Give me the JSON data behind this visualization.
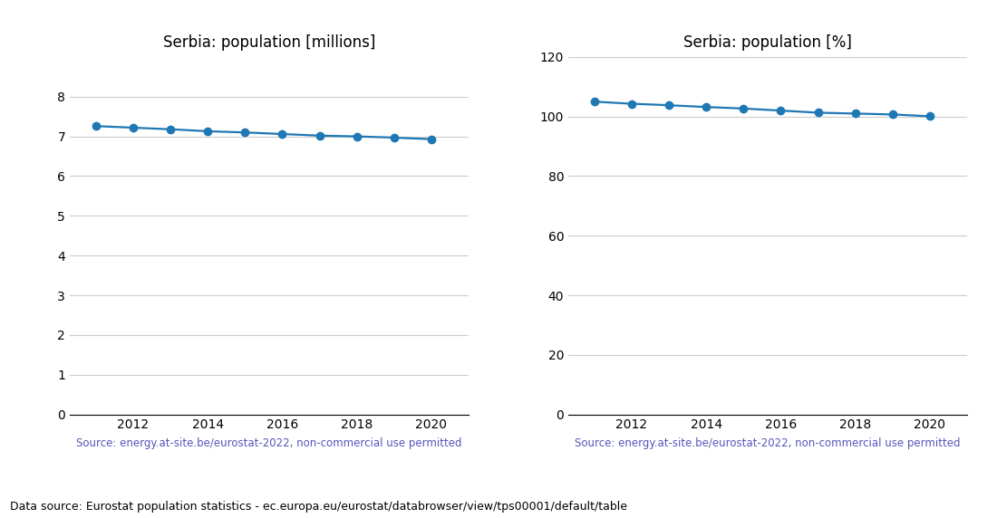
{
  "years": [
    2011,
    2012,
    2013,
    2014,
    2015,
    2016,
    2017,
    2018,
    2019,
    2020
  ],
  "population_millions": [
    7.26,
    7.22,
    7.18,
    7.13,
    7.1,
    7.06,
    7.02,
    7.0,
    6.97,
    6.93
  ],
  "population_percent": [
    105.0,
    104.3,
    103.8,
    103.2,
    102.7,
    102.0,
    101.3,
    101.0,
    100.7,
    100.1
  ],
  "title_millions": "Serbia: population [millions]",
  "title_percent": "Serbia: population [%]",
  "source_text": "Source: energy.at-site.be/eurostat-2022, non-commercial use permitted",
  "footer_text": "Data source: Eurostat population statistics - ec.europa.eu/eurostat/databrowser/view/tps00001/default/table",
  "line_color": "#1f77b4",
  "marker": "o",
  "markersize": 6,
  "linewidth": 1.6,
  "ylim_millions": [
    0,
    9
  ],
  "ylim_percent": [
    0,
    120
  ],
  "yticks_millions": [
    0,
    1,
    2,
    3,
    4,
    5,
    6,
    7,
    8
  ],
  "yticks_percent": [
    0,
    20,
    40,
    60,
    80,
    100,
    120
  ],
  "source_color": "#5555bb",
  "footer_color": "#000000",
  "source_fontsize": 8.5,
  "footer_fontsize": 9,
  "title_fontsize": 12,
  "tick_fontsize": 10,
  "grid_color": "#cccccc",
  "grid_linewidth": 0.8,
  "xticks": [
    2011,
    2012,
    2013,
    2014,
    2015,
    2016,
    2017,
    2018,
    2019,
    2020
  ],
  "xtick_labels": [
    "",
    "2012",
    "",
    "2014",
    "",
    "2016",
    "",
    "2018",
    "",
    "2020"
  ]
}
